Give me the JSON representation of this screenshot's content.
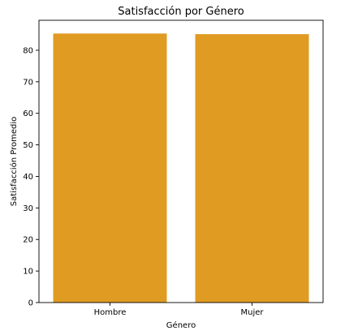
{
  "chart_data": {
    "type": "bar",
    "title": "Satisfacción por Género",
    "xlabel": "Género",
    "ylabel": "Satisfacción Promedio",
    "categories": [
      "Hombre",
      "Mujer"
    ],
    "values": [
      85.3,
      85.1
    ],
    "ylim": [
      0,
      89.5
    ],
    "yticks": [
      0,
      10,
      20,
      30,
      40,
      50,
      60,
      70,
      80
    ],
    "bar_color": "#e09b22",
    "grid": false,
    "legend": "none"
  }
}
